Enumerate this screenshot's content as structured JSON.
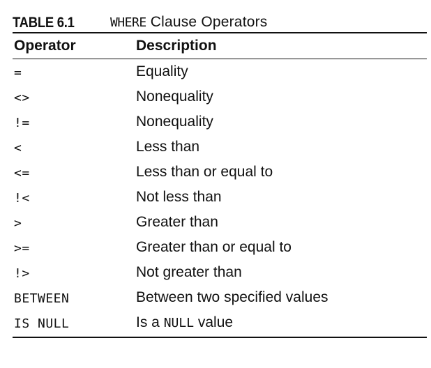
{
  "caption": {
    "label": "TABLE 6.1",
    "title_code": "WHERE",
    "title_rest": " Clause Operators"
  },
  "columns": {
    "operator": "Operator",
    "description": "Description"
  },
  "rows": [
    {
      "operator": "=",
      "description": "Equality"
    },
    {
      "operator": "<>",
      "description": "Nonequality"
    },
    {
      "operator": "!=",
      "description": "Nonequality"
    },
    {
      "operator": "<",
      "description": "Less than"
    },
    {
      "operator": "<=",
      "description": "Less than or equal to"
    },
    {
      "operator": "!<",
      "description": "Not less than"
    },
    {
      "operator": ">",
      "description": "Greater than"
    },
    {
      "operator": ">=",
      "description": "Greater than or equal to"
    },
    {
      "operator": "!>",
      "description": "Not greater than"
    },
    {
      "operator": "BETWEEN",
      "description": "Between two specified values"
    },
    {
      "operator": "IS NULL",
      "description_prefix": "Is a ",
      "description_code": "NULL",
      "description_suffix": " value"
    }
  ]
}
